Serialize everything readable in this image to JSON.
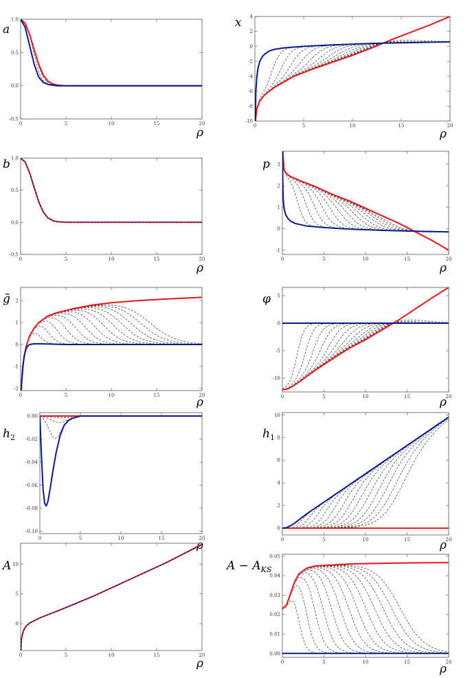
{
  "colors": {
    "red": "#e8141c",
    "blue": "#0a1a8c",
    "family": "#111111",
    "frame": "#555555",
    "zero": "#999999"
  },
  "chart_data": [
    {
      "id": "a",
      "label": "a",
      "type": "line",
      "xlabel": "ρ",
      "xlim": [
        0,
        20
      ],
      "ylim": [
        -0.5,
        1.0
      ],
      "xticks": [
        "0",
        "5",
        "10",
        "15",
        "20"
      ],
      "yticks": [
        "-0.5",
        "0.0",
        "0.5",
        "1.0"
      ],
      "ytick_values": [
        -0.5,
        0,
        0.5,
        1.0
      ],
      "series": [
        {
          "color": "red",
          "x": [
            0,
            0.5,
            1,
            1.5,
            2,
            2.5,
            3,
            3.5,
            4,
            5,
            7,
            10,
            15,
            20
          ],
          "y": [
            1,
            0.94,
            0.77,
            0.54,
            0.32,
            0.16,
            0.07,
            0.03,
            0.01,
            0,
            0,
            0,
            0,
            0
          ]
        },
        {
          "color": "blue",
          "x": [
            0,
            0.5,
            1,
            1.5,
            2,
            2.5,
            3,
            3.5,
            4,
            5,
            7,
            10,
            15,
            20
          ],
          "y": [
            1,
            0.88,
            0.6,
            0.32,
            0.13,
            0.05,
            0.02,
            0.01,
            0,
            0,
            0,
            0,
            0,
            0
          ]
        }
      ]
    },
    {
      "id": "x",
      "label": "x",
      "type": "line",
      "xlabel": "ρ",
      "xlim": [
        0,
        20
      ],
      "ylim": [
        -10,
        4
      ],
      "xticks": [
        "0",
        "5",
        "10",
        "15",
        "20"
      ],
      "yticks": [
        "-10",
        "-8",
        "-6",
        "-4",
        "-2",
        "0",
        "2",
        "4"
      ],
      "ytick_values": [
        -10,
        -8,
        -6,
        -4,
        -2,
        0,
        2,
        4
      ],
      "series": [
        {
          "color": "red",
          "x": [
            0.05,
            0.2,
            0.5,
            1,
            2,
            4,
            6,
            8,
            10,
            12,
            14,
            16,
            18,
            20
          ],
          "y": [
            -10,
            -8.4,
            -7.3,
            -6.5,
            -5.5,
            -4,
            -3,
            -2.1,
            -1.2,
            -0.2,
            0.9,
            1.9,
            2.9,
            4
          ]
        },
        {
          "color": "blue",
          "x": [
            0.05,
            0.1,
            0.2,
            0.3,
            0.5,
            0.8,
            1,
            1.5,
            2,
            3,
            5,
            8,
            12,
            16,
            20
          ],
          "y": [
            -10,
            -6,
            -4.2,
            -3,
            -2,
            -1.3,
            -1.05,
            -0.6,
            -0.4,
            -0.2,
            0,
            0.2,
            0.4,
            0.5,
            0.6
          ]
        }
      ]
    },
    {
      "id": "b",
      "label": "b",
      "type": "line",
      "xlabel": "ρ",
      "xlim": [
        0,
        20
      ],
      "ylim": [
        -0.5,
        1.0
      ],
      "xticks": [
        "0",
        "5",
        "10",
        "15",
        "20"
      ],
      "yticks": [
        "-0.5",
        "0.0",
        "0.5",
        "1.0"
      ],
      "ytick_values": [
        -0.5,
        0,
        0.5,
        1.0
      ],
      "series": [
        {
          "color": "red",
          "x": [
            0,
            0.5,
            1,
            1.5,
            2,
            2.5,
            3,
            3.5,
            4,
            5,
            7,
            10,
            15,
            20
          ],
          "y": [
            1,
            0.94,
            0.77,
            0.54,
            0.32,
            0.16,
            0.07,
            0.03,
            0.01,
            0,
            0,
            0,
            0,
            0
          ]
        },
        {
          "color": "blue",
          "dash": true,
          "x": [
            0,
            0.5,
            1,
            1.5,
            2,
            2.5,
            3,
            3.5,
            4,
            5,
            7,
            10,
            15,
            20
          ],
          "y": [
            1,
            0.94,
            0.77,
            0.54,
            0.32,
            0.16,
            0.07,
            0.03,
            0.01,
            0,
            0,
            0,
            0,
            0
          ]
        }
      ]
    },
    {
      "id": "p",
      "label": "p",
      "type": "line",
      "xlabel": "ρ",
      "xlim": [
        0,
        20
      ],
      "ylim": [
        -1.2,
        3.6
      ],
      "xticks": [
        "0",
        "5",
        "10",
        "15",
        "20"
      ],
      "yticks": [
        "-1",
        "0",
        "1",
        "2",
        "3"
      ],
      "ytick_values": [
        -1,
        0,
        1,
        2,
        3
      ],
      "series": [
        {
          "color": "red",
          "x": [
            0.05,
            0.2,
            0.5,
            1,
            2,
            4,
            6,
            8,
            10,
            12,
            14,
            16,
            18,
            20
          ],
          "y": [
            3.6,
            2.75,
            2.55,
            2.42,
            2.25,
            1.95,
            1.6,
            1.3,
            0.95,
            0.6,
            0.25,
            -0.15,
            -0.55,
            -1.0
          ]
        },
        {
          "color": "blue",
          "x": [
            0.02,
            0.05,
            0.1,
            0.2,
            0.4,
            0.7,
            1,
            1.5,
            2,
            3,
            5,
            8,
            12,
            16,
            20
          ],
          "y": [
            3.6,
            2.2,
            1.4,
            0.95,
            0.65,
            0.45,
            0.35,
            0.25,
            0.2,
            0.12,
            0.05,
            -0.02,
            -0.08,
            -0.12,
            -0.15
          ]
        }
      ]
    },
    {
      "id": "g",
      "label": "g̃",
      "type": "line",
      "xlabel": "ρ",
      "xlim": [
        0,
        20
      ],
      "ylim": [
        -2.1,
        2.6
      ],
      "xticks": [
        "0",
        "5",
        "10",
        "15",
        "20"
      ],
      "yticks": [
        "-2",
        "-1",
        "0",
        "1",
        "2"
      ],
      "ytick_values": [
        -2,
        -1,
        0,
        1,
        2
      ],
      "series": [
        {
          "color": "red",
          "x": [
            0.05,
            0.3,
            0.6,
            1,
            1.5,
            2,
            3,
            4,
            6,
            8,
            10,
            13,
            16,
            20
          ],
          "y": [
            -2.1,
            -0.8,
            -0.1,
            0.4,
            0.75,
            1.0,
            1.3,
            1.45,
            1.65,
            1.8,
            1.9,
            2.0,
            2.07,
            2.15
          ]
        },
        {
          "color": "blue",
          "x": [
            0.05,
            0.2,
            0.4,
            0.6,
            0.8,
            1,
            1.5,
            2,
            3,
            5,
            10,
            20
          ],
          "y": [
            -2.1,
            -1.2,
            -0.5,
            -0.2,
            -0.06,
            0,
            0.03,
            0.03,
            0.02,
            0,
            0,
            0
          ]
        }
      ]
    },
    {
      "id": "phi",
      "label": "φ",
      "type": "line",
      "xlabel": "ρ",
      "xlim": [
        0,
        20
      ],
      "ylim": [
        -12.5,
        6.5
      ],
      "xticks": [
        "0",
        "5",
        "10",
        "15",
        "20"
      ],
      "yticks": [
        "-10",
        "-5",
        "0",
        "5"
      ],
      "ytick_values": [
        -10,
        -5,
        0,
        5
      ],
      "series": [
        {
          "color": "red",
          "x": [
            0,
            0.5,
            1,
            2,
            4,
            6,
            8,
            10,
            12,
            14,
            16,
            18,
            20
          ],
          "y": [
            -12.1,
            -12,
            -11.7,
            -10.7,
            -8.5,
            -6.5,
            -4.6,
            -3,
            -1.2,
            0.6,
            2.6,
            4.6,
            6.5
          ]
        },
        {
          "color": "blue",
          "x": [
            0,
            20
          ],
          "y": [
            0,
            0
          ]
        }
      ]
    },
    {
      "id": "h2",
      "label": "h₂",
      "type": "line",
      "xlabel": "ρ",
      "xlim": [
        0,
        20
      ],
      "ylim": [
        -0.102,
        0.003
      ],
      "xticks": [
        "0",
        "5",
        "10",
        "15",
        "20"
      ],
      "yticks": [
        "-0.10",
        "-0.08",
        "-0.06",
        "-0.04",
        "-0.02",
        "0.00"
      ],
      "ytick_values": [
        -0.1,
        -0.08,
        -0.06,
        -0.04,
        -0.02,
        0
      ],
      "series": [
        {
          "color": "red",
          "x": [
            0,
            20
          ],
          "y": [
            0,
            0
          ]
        },
        {
          "color": "blue",
          "x": [
            0,
            0.2,
            0.4,
            0.6,
            0.8,
            1,
            1.3,
            1.6,
            2,
            2.5,
            3,
            3.5,
            4,
            5,
            6,
            10,
            20
          ],
          "y": [
            0,
            -0.035,
            -0.064,
            -0.076,
            -0.078,
            -0.074,
            -0.062,
            -0.048,
            -0.032,
            -0.017,
            -0.008,
            -0.004,
            -0.002,
            0,
            0,
            0,
            0
          ]
        }
      ]
    },
    {
      "id": "h1",
      "label": "h₁",
      "type": "line",
      "xlabel": "ρ",
      "xlim": [
        0,
        20
      ],
      "ylim": [
        -0.6,
        10.2
      ],
      "xticks": [
        "0",
        "5",
        "10",
        "15",
        "20"
      ],
      "yticks": [
        "0",
        "2",
        "4",
        "6",
        "8",
        "10"
      ],
      "ytick_values": [
        0,
        2,
        4,
        6,
        8,
        10
      ],
      "series": [
        {
          "color": "red",
          "x": [
            0,
            20
          ],
          "y": [
            0,
            0
          ]
        },
        {
          "color": "blue",
          "x": [
            0,
            0.5,
            1,
            1.5,
            2,
            3,
            5,
            8,
            12,
            16,
            20
          ],
          "y": [
            0,
            0.05,
            0.22,
            0.45,
            0.75,
            1.3,
            2.3,
            3.8,
            5.8,
            7.8,
            9.8
          ]
        }
      ]
    },
    {
      "id": "A",
      "label": "A",
      "type": "line",
      "xlabel": "ρ",
      "xlim": [
        0,
        20
      ],
      "ylim": [
        -4.5,
        13.5
      ],
      "xticks": [
        "0",
        "5",
        "10",
        "15",
        "20"
      ],
      "yticks": [
        "0",
        "5",
        "10"
      ],
      "ytick_values": [
        0,
        5,
        10
      ],
      "series": [
        {
          "color": "red",
          "x": [
            0.03,
            0.1,
            0.3,
            0.6,
            1,
            2,
            3,
            5,
            8,
            12,
            16,
            20
          ],
          "y": [
            -4.5,
            -2.5,
            -1.2,
            -0.4,
            0.1,
            0.9,
            1.5,
            2.7,
            4.6,
            7.4,
            10.2,
            13.3
          ]
        },
        {
          "color": "blue",
          "dash": true,
          "x": [
            0.03,
            0.1,
            0.3,
            0.6,
            1,
            2,
            3,
            5,
            8,
            12,
            16,
            20
          ],
          "y": [
            -4.5,
            -2.5,
            -1.2,
            -0.4,
            0.1,
            0.9,
            1.5,
            2.7,
            4.6,
            7.4,
            10.2,
            13.3
          ]
        }
      ]
    },
    {
      "id": "AKS",
      "label": "A − A_KS",
      "type": "line",
      "xlabel": "ρ",
      "xlim": [
        0,
        20
      ],
      "ylim": [
        -0.002,
        0.051
      ],
      "xticks": [
        "0",
        "5",
        "10",
        "15",
        "20"
      ],
      "yticks": [
        "0.00",
        "0.01",
        "0.02",
        "0.03",
        "0.04",
        "0.05"
      ],
      "ytick_values": [
        0,
        0.01,
        0.02,
        0.03,
        0.04,
        0.05
      ],
      "series": [
        {
          "color": "red",
          "x": [
            0,
            0.5,
            1,
            1.5,
            2,
            3,
            4,
            6,
            8,
            10,
            13,
            16,
            20
          ],
          "y": [
            0.023,
            0.025,
            0.031,
            0.037,
            0.041,
            0.044,
            0.045,
            0.0455,
            0.046,
            0.0462,
            0.0464,
            0.0466,
            0.0467
          ]
        },
        {
          "color": "blue",
          "x": [
            0,
            20
          ],
          "y": [
            0,
            0
          ]
        }
      ]
    }
  ]
}
